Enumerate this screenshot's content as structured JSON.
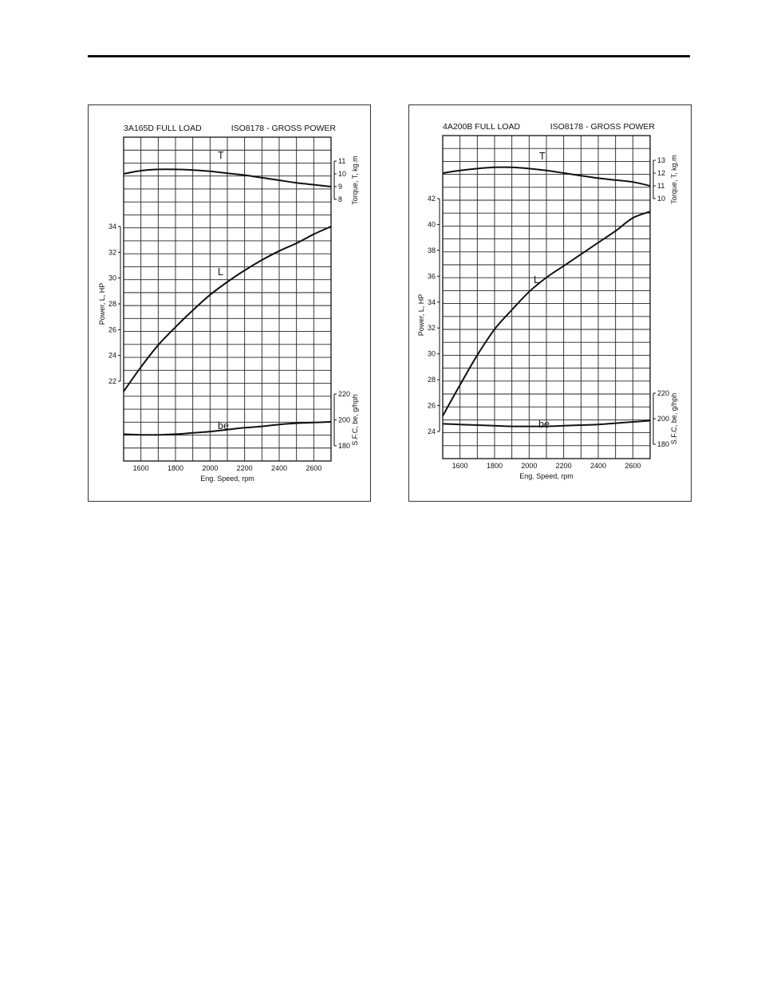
{
  "page": {
    "background": "#ffffff",
    "rule_color": "#111111"
  },
  "chart_data": [
    {
      "type": "line",
      "title": "3A165D  FULL LOAD",
      "subtitle": "ISO8178 - GROSS POWER",
      "xlabel": "Eng. Speed, rpm",
      "xlim": [
        1500,
        2700
      ],
      "xticks": [
        1600,
        1800,
        2000,
        2200,
        2400,
        2600
      ],
      "axes": {
        "torque": {
          "label": "Torque, T, kg.m",
          "ticks": [
            8,
            9,
            10,
            11
          ],
          "range": [
            7.8,
            11.8
          ]
        },
        "power": {
          "label": "Power, L, HP",
          "ticks": [
            22,
            24,
            26,
            28,
            30,
            32,
            34
          ],
          "range": [
            21.2,
            34.8
          ]
        },
        "sfc": {
          "label": "S.F.C, be, g/hph",
          "ticks": [
            180,
            200,
            220
          ],
          "range": [
            178,
            222
          ]
        }
      },
      "series": [
        {
          "name": "T",
          "axis": "torque",
          "x": [
            1500,
            1600,
            1700,
            1800,
            1900,
            2000,
            2100,
            2200,
            2300,
            2400,
            2500,
            2600,
            2700
          ],
          "y": [
            10.0,
            10.25,
            10.35,
            10.35,
            10.3,
            10.2,
            10.05,
            9.9,
            9.7,
            9.5,
            9.3,
            9.15,
            9.0
          ]
        },
        {
          "name": "L",
          "axis": "power",
          "x": [
            1500,
            1600,
            1700,
            1800,
            1900,
            2000,
            2100,
            2200,
            2300,
            2400,
            2500,
            2600,
            2700
          ],
          "y": [
            21.2,
            23.1,
            24.8,
            26.2,
            27.5,
            28.7,
            29.7,
            30.6,
            31.4,
            32.1,
            32.7,
            33.4,
            34.0
          ]
        },
        {
          "name": "be",
          "axis": "sfc",
          "x": [
            1500,
            1600,
            1700,
            1800,
            1900,
            2000,
            2100,
            2200,
            2300,
            2400,
            2500,
            2600,
            2700
          ],
          "y": [
            189,
            188.5,
            188.5,
            189,
            190,
            191,
            192.5,
            194,
            195,
            196.5,
            197.5,
            198,
            198.5
          ]
        }
      ],
      "grid": true
    },
    {
      "type": "line",
      "title": "4A200B  FULL LOAD",
      "subtitle": "ISO8178 - GROSS POWER",
      "xlabel": "Eng. Speed, rpm",
      "xlim": [
        1500,
        2700
      ],
      "xticks": [
        1600,
        1800,
        2000,
        2200,
        2400,
        2600
      ],
      "axes": {
        "torque": {
          "label": "Torque, T, kg.m",
          "ticks": [
            10,
            11,
            12,
            13
          ],
          "range": [
            9.8,
            13.8
          ]
        },
        "power": {
          "label": "Power, L, HP",
          "ticks": [
            24,
            26,
            28,
            30,
            32,
            34,
            36,
            38,
            40,
            42
          ],
          "range": [
            23.2,
            42.8
          ]
        },
        "sfc": {
          "label": "S.F.C, be, g/hph",
          "ticks": [
            180,
            200,
            220
          ],
          "range": [
            178,
            222
          ]
        }
      },
      "series": [
        {
          "name": "T",
          "axis": "torque",
          "x": [
            1500,
            1600,
            1700,
            1800,
            1900,
            2000,
            2100,
            2200,
            2300,
            2400,
            2500,
            2600,
            2700
          ],
          "y": [
            12.0,
            12.2,
            12.35,
            12.45,
            12.45,
            12.35,
            12.2,
            12.0,
            11.8,
            11.6,
            11.45,
            11.3,
            11.0
          ]
        },
        {
          "name": "L",
          "axis": "power",
          "x": [
            1500,
            1600,
            1700,
            1800,
            1900,
            2000,
            2100,
            2200,
            2300,
            2400,
            2500,
            2600,
            2700
          ],
          "y": [
            25.2,
            27.6,
            29.9,
            31.9,
            33.4,
            34.8,
            35.9,
            36.8,
            37.7,
            38.6,
            39.5,
            40.5,
            41.0
          ]
        },
        {
          "name": "be",
          "axis": "sfc",
          "x": [
            1500,
            1600,
            1700,
            1800,
            1900,
            2000,
            2100,
            2200,
            2300,
            2400,
            2500,
            2600,
            2700
          ],
          "y": [
            196,
            195.5,
            195,
            194.5,
            194,
            194,
            194,
            194.5,
            195,
            195.5,
            196.5,
            197.5,
            198.5
          ]
        }
      ],
      "grid": true
    }
  ]
}
